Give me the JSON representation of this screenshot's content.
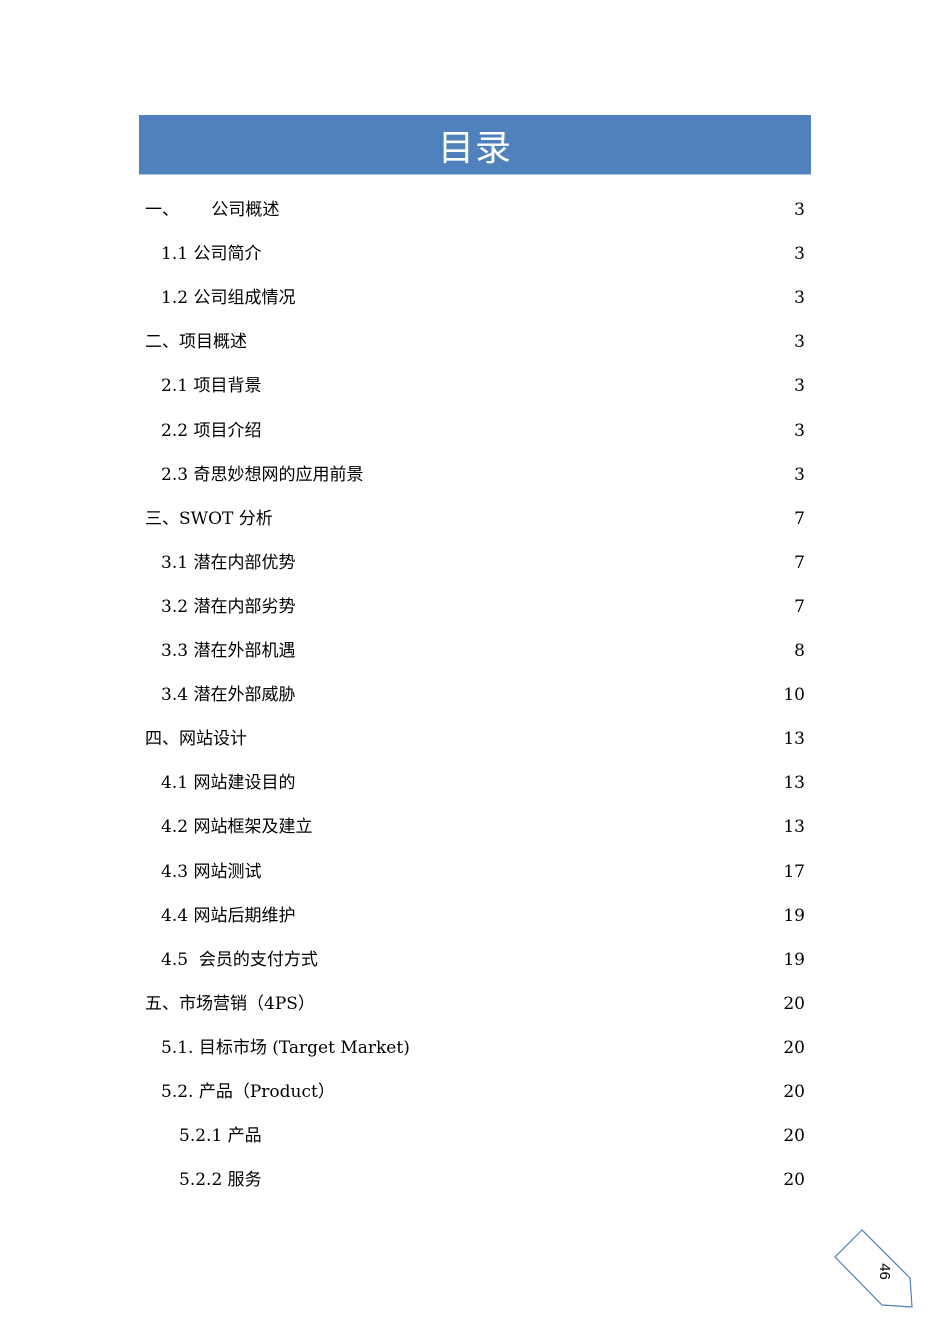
{
  "title": "目录",
  "toc": [
    {
      "label": "一、      公司概述",
      "page": "3",
      "level": 1
    },
    {
      "label": "1.1 公司简介",
      "page": "3",
      "level": 2
    },
    {
      "label": "1.2 公司组成情况",
      "page": "3",
      "level": 2
    },
    {
      "label": "二、项目概述",
      "page": "3",
      "level": 1
    },
    {
      "label": "2.1 项目背景",
      "page": "3",
      "level": 2
    },
    {
      "label": "2.2 项目介绍",
      "page": "3",
      "level": 2
    },
    {
      "label": "2.3 奇思妙想网的应用前景",
      "page": "3",
      "level": 2
    },
    {
      "label": "三、SWOT 分析",
      "page": "7",
      "level": 1
    },
    {
      "label": "3.1 潜在内部优势",
      "page": "7",
      "level": 2
    },
    {
      "label": "3.2 潜在内部劣势",
      "page": "7",
      "level": 2
    },
    {
      "label": "3.3 潜在外部机遇",
      "page": "8",
      "level": 2
    },
    {
      "label": "3.4 潜在外部威胁",
      "page": "10",
      "level": 2
    },
    {
      "label": "四、网站设计",
      "page": "13",
      "level": 1
    },
    {
      "label": "4.1 网站建设目的",
      "page": "13",
      "level": 2
    },
    {
      "label": "4.2 网站框架及建立",
      "page": "13",
      "level": 2
    },
    {
      "label": "4.3 网站测试",
      "page": "17",
      "level": 2
    },
    {
      "label": "4.4 网站后期维护",
      "page": "19",
      "level": 2
    },
    {
      "label": "4.5  会员的支付方式",
      "page": "19",
      "level": 2
    },
    {
      "label": "五、市场营销（4PS）",
      "page": "20",
      "level": 1
    },
    {
      "label": "5.1. 目标市场 (Target Market)",
      "page": "20",
      "level": 2
    },
    {
      "label": "5.2. 产品（Product）",
      "page": "20",
      "level": 2
    },
    {
      "label": "5.2.1 产品",
      "page": "20",
      "level": 3
    },
    {
      "label": "5.2.2 服务",
      "page": "20",
      "level": 3
    }
  ],
  "page_number": "46",
  "colors": {
    "banner": "#4f81bd",
    "page_tab_outline": "#4f81bd"
  }
}
